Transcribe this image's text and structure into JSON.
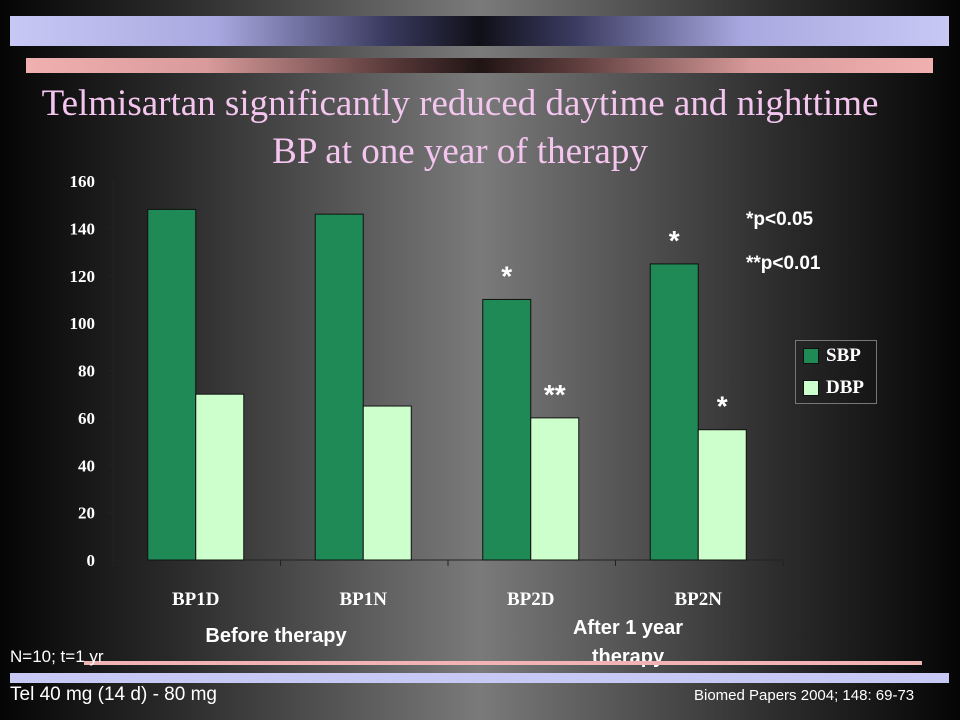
{
  "title": "Telmisartan significantly reduced daytime and nighttime BP at one year of therapy",
  "colors": {
    "sbp": "#1f8a55",
    "dbp": "#ccffcc",
    "title": "#f4c6ef"
  },
  "chart_data": {
    "type": "bar",
    "categories": [
      "BP1D",
      "BP1N",
      "BP2D",
      "BP2N"
    ],
    "series": [
      {
        "name": "SBP",
        "values": [
          148,
          146,
          110,
          125
        ]
      },
      {
        "name": "DBP",
        "values": [
          70,
          65,
          60,
          55
        ]
      }
    ],
    "ylim": [
      0,
      160
    ],
    "yticks": [
      "0",
      "20",
      "40",
      "60",
      "80",
      "100",
      "120",
      "140",
      "160"
    ],
    "legend": "right",
    "grid": false,
    "annotations": [
      {
        "text": "*",
        "category": "BP2D",
        "series": "SBP"
      },
      {
        "text": "**",
        "category": "BP2D",
        "series": "DBP"
      },
      {
        "text": "*",
        "category": "BP2N",
        "series": "SBP"
      },
      {
        "text": "*",
        "category": "BP2N",
        "series": "DBP"
      }
    ],
    "significance": [
      "*p<0.05",
      "**p<0.01"
    ]
  },
  "groups": {
    "before": "Before therapy",
    "after": "After 1 year therapy"
  },
  "footer": {
    "n": "N=10; t=1 yr",
    "dose": "Tel 40 mg (14 d) - 80 mg",
    "ref": "Biomed Papers 2004; 148: 69-73"
  }
}
